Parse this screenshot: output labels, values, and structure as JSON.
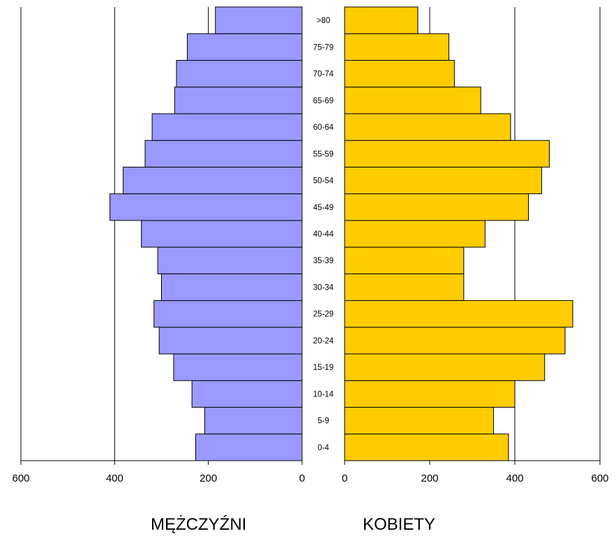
{
  "chart_data": {
    "type": "bar",
    "categories": [
      "0-4",
      "5-9",
      "10-14",
      "15-19",
      "20-24",
      "25-29",
      "30-34",
      "35-39",
      "40-44",
      "45-49",
      "50-54",
      "55-59",
      "60-64",
      "65-69",
      "70-74",
      "75-79",
      ">80"
    ],
    "series": [
      {
        "name": "MĘŻCZYŹNI",
        "values": [
          227,
          208,
          235,
          274,
          305,
          316,
          300,
          308,
          343,
          410,
          382,
          335,
          320,
          272,
          268,
          245,
          185
        ],
        "color": "#9999ff"
      },
      {
        "name": "KOBIETY",
        "values": [
          385,
          350,
          400,
          470,
          518,
          536,
          280,
          280,
          330,
          432,
          463,
          481,
          390,
          320,
          258,
          245,
          172
        ],
        "color": "#ffcc00"
      }
    ],
    "left_axis": {
      "ticks": [
        "600",
        "400",
        "200",
        "0"
      ],
      "range": [
        600,
        0
      ]
    },
    "right_axis": {
      "ticks": [
        "0",
        "200",
        "400",
        "600"
      ],
      "range": [
        0,
        600
      ]
    },
    "grid": true
  },
  "labels": {
    "left": "MĘŻCZYŹNI",
    "right": "KOBIETY"
  }
}
